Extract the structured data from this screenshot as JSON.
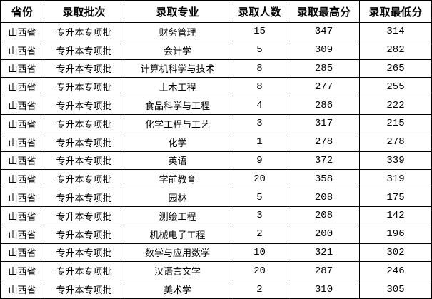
{
  "table": {
    "headers": [
      "省份",
      "录取批次",
      "录取专业",
      "录取人数",
      "录取最高分",
      "录取最低分"
    ],
    "rows": [
      [
        "山西省",
        "专升本专项批",
        "财务管理",
        "15",
        "347",
        "314"
      ],
      [
        "山西省",
        "专升本专项批",
        "会计学",
        "5",
        "309",
        "282"
      ],
      [
        "山西省",
        "专升本专项批",
        "计算机科学与技术",
        "8",
        "285",
        "265"
      ],
      [
        "山西省",
        "专升本专项批",
        "土木工程",
        "8",
        "277",
        "255"
      ],
      [
        "山西省",
        "专升本专项批",
        "食品科学与工程",
        "4",
        "286",
        "222"
      ],
      [
        "山西省",
        "专升本专项批",
        "化学工程与工艺",
        "3",
        "317",
        "215"
      ],
      [
        "山西省",
        "专升本专项批",
        "化学",
        "1",
        "278",
        "278"
      ],
      [
        "山西省",
        "专升本专项批",
        "英语",
        "9",
        "372",
        "339"
      ],
      [
        "山西省",
        "专升本专项批",
        "学前教育",
        "20",
        "358",
        "319"
      ],
      [
        "山西省",
        "专升本专项批",
        "园林",
        "5",
        "208",
        "175"
      ],
      [
        "山西省",
        "专升本专项批",
        "测绘工程",
        "3",
        "208",
        "142"
      ],
      [
        "山西省",
        "专升本专项批",
        "机械电子工程",
        "2",
        "200",
        "196"
      ],
      [
        "山西省",
        "专升本专项批",
        "数学与应用数学",
        "10",
        "321",
        "302"
      ],
      [
        "山西省",
        "专升本专项批",
        "汉语言文学",
        "20",
        "287",
        "246"
      ],
      [
        "山西省",
        "专升本专项批",
        "美术学",
        "2",
        "310",
        "305"
      ]
    ]
  }
}
